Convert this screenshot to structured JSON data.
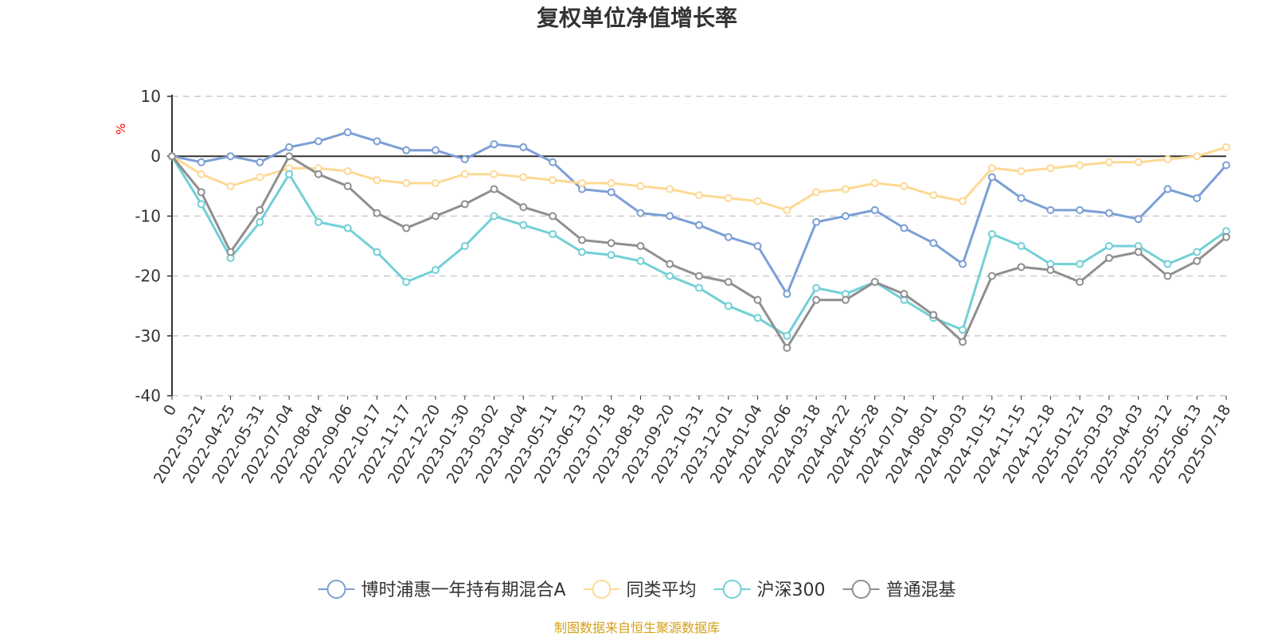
{
  "chart_data": {
    "type": "line",
    "title": "复权单位净值增长率",
    "ylabel": "%",
    "xlabel": "",
    "ylim": [
      -40,
      10
    ],
    "yticks": [
      10,
      0,
      -10,
      -20,
      -30,
      -40
    ],
    "grid": true,
    "legend_position": "bottom",
    "x_tick_labels": [
      "0",
      "2022-03-21",
      "2022-04-25",
      "2022-05-31",
      "2022-07-04",
      "2022-08-04",
      "2022-09-06",
      "2022-10-17",
      "2022-11-17",
      "2022-12-20",
      "2023-01-30",
      "2023-03-02",
      "2023-04-04",
      "2023-05-11",
      "2023-06-13",
      "2023-07-18",
      "2023-08-18",
      "2023-09-20",
      "2023-10-31",
      "2023-12-01",
      "2024-01-04",
      "2024-02-06",
      "2024-03-18",
      "2024-04-22",
      "2024-05-28",
      "2024-07-01",
      "2024-08-01",
      "2024-09-03",
      "2024-10-15",
      "2024-11-15",
      "2024-12-18",
      "2025-01-21",
      "2025-03-03",
      "2025-04-03",
      "2025-05-12",
      "2025-06-13",
      "2025-07-18"
    ],
    "x_index": [
      0,
      1,
      2,
      3,
      4,
      5,
      6,
      7,
      8,
      9,
      10,
      11,
      12,
      13,
      14,
      15,
      16,
      17,
      18,
      19,
      20,
      21,
      22,
      23,
      24,
      25,
      26,
      27,
      28,
      29,
      30,
      31,
      32,
      33,
      34,
      35,
      36
    ],
    "series": [
      {
        "name": "博时浦惠一年持有期混合A",
        "color": "#7b9fd6",
        "values": [
          0,
          -1,
          0,
          -1,
          1.5,
          2.5,
          4,
          2.5,
          1,
          1,
          -0.5,
          2,
          1.5,
          -1,
          -5.5,
          -6,
          -9.5,
          -10,
          -11.5,
          -13.5,
          -15,
          -23,
          -11,
          -10,
          -9,
          -12,
          -14.5,
          -18,
          -3.5,
          -7,
          -9,
          -9,
          -9.5,
          -10.5,
          -5.5,
          -7,
          -1.5
        ]
      },
      {
        "name": "同类平均",
        "color": "#fdd995",
        "values": [
          0,
          -3,
          -5,
          -3.5,
          -2,
          -2,
          -2.5,
          -4,
          -4.5,
          -4.5,
          -3,
          -3,
          -3.5,
          -4,
          -4.5,
          -4.5,
          -5,
          -5.5,
          -6.5,
          -7,
          -7.5,
          -9,
          -6,
          -5.5,
          -4.5,
          -5,
          -6.5,
          -7.5,
          -2,
          -2.5,
          -2,
          -1.5,
          -1,
          -1,
          -0.5,
          0,
          1.5
        ]
      },
      {
        "name": "沪深300",
        "color": "#72d0d6",
        "values": [
          0,
          -8,
          -17,
          -11,
          -3,
          -11,
          -12,
          -16,
          -21,
          -19,
          -15,
          -10,
          -11.5,
          -13,
          -16,
          -16.5,
          -17.5,
          -20,
          -22,
          -25,
          -27,
          -30,
          -22,
          -23,
          -21,
          -24,
          -27,
          -29,
          -13,
          -15,
          -18,
          -18,
          -15,
          -15,
          -18,
          -16,
          -12.5
        ]
      },
      {
        "name": "普通混基",
        "color": "#8f8f8f",
        "values": [
          0,
          -6,
          -16,
          -9,
          0,
          -3,
          -5,
          -9.5,
          -12,
          -10,
          -8,
          -5.5,
          -8.5,
          -10,
          -14,
          -14.5,
          -15,
          -18,
          -20,
          -21,
          -24,
          -32,
          -24,
          -24,
          -21,
          -23,
          -26.5,
          -31,
          -20,
          -18.5,
          -19,
          -21,
          -17,
          -16,
          -20,
          -17.5,
          -13.5
        ]
      }
    ]
  },
  "source_text": "制图数据来自恒生聚源数据库"
}
